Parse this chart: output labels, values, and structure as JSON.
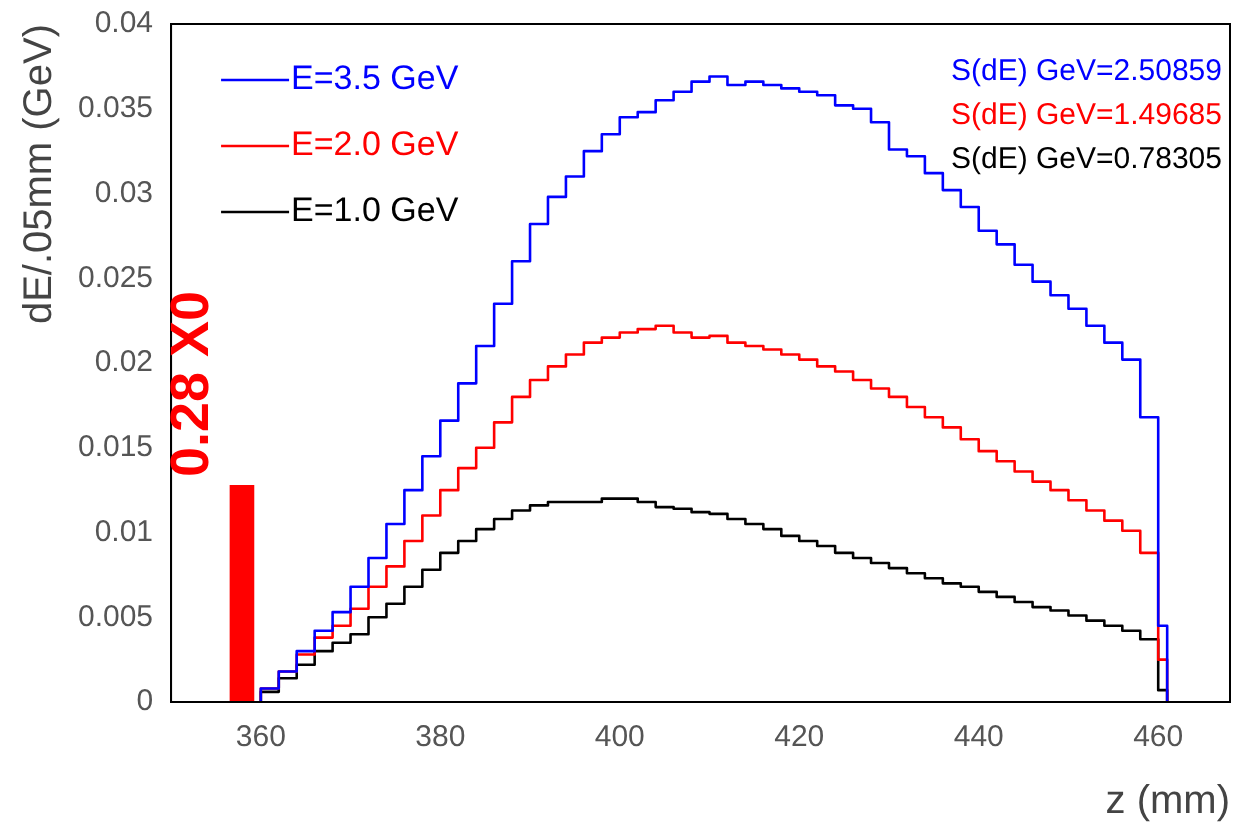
{
  "chart_data": {
    "type": "histogram",
    "xlabel": "z (mm)",
    "ylabel": "dE/.05mm (GeV)",
    "bins": [
      360,
      362,
      364,
      366,
      368,
      370,
      372,
      374,
      376,
      378,
      380,
      382,
      384,
      386,
      388,
      390,
      392,
      394,
      396,
      398,
      400,
      402,
      404,
      406,
      408,
      410,
      412,
      414,
      416,
      418,
      420,
      422,
      424,
      426,
      428,
      430,
      432,
      434,
      436,
      438,
      440,
      442,
      444,
      446,
      448,
      450,
      452,
      454,
      456,
      458,
      460,
      461
    ],
    "series": [
      {
        "name": "E=3.5 GeV",
        "color": "#0000ff",
        "values": [
          0.0008,
          0.0018,
          0.003,
          0.0042,
          0.0053,
          0.0068,
          0.0085,
          0.0105,
          0.0125,
          0.0145,
          0.0166,
          0.0188,
          0.021,
          0.0235,
          0.026,
          0.0282,
          0.0298,
          0.031,
          0.0325,
          0.0335,
          0.0345,
          0.0348,
          0.0355,
          0.036,
          0.0366,
          0.0369,
          0.0364,
          0.0366,
          0.0364,
          0.0362,
          0.036,
          0.0358,
          0.0352,
          0.035,
          0.0342,
          0.0326,
          0.0322,
          0.0312,
          0.0302,
          0.0292,
          0.0278,
          0.027,
          0.0258,
          0.0248,
          0.024,
          0.0232,
          0.0222,
          0.0212,
          0.0202,
          0.0168,
          0.0045
        ]
      },
      {
        "name": "E=2.0 GeV",
        "color": "#ff0000",
        "values": [
          0.0008,
          0.0018,
          0.0028,
          0.0038,
          0.0045,
          0.0055,
          0.0068,
          0.008,
          0.0095,
          0.011,
          0.0125,
          0.0138,
          0.015,
          0.0165,
          0.018,
          0.019,
          0.0198,
          0.0205,
          0.0212,
          0.0215,
          0.0218,
          0.022,
          0.0222,
          0.0218,
          0.0215,
          0.0216,
          0.0212,
          0.021,
          0.0208,
          0.0205,
          0.0202,
          0.0198,
          0.0195,
          0.019,
          0.0185,
          0.018,
          0.0174,
          0.0168,
          0.0162,
          0.0155,
          0.0148,
          0.0142,
          0.0136,
          0.013,
          0.0125,
          0.0119,
          0.0113,
          0.0107,
          0.0101,
          0.0088,
          0.0025
        ]
      },
      {
        "name": "E=1.0 GeV",
        "color": "#000000",
        "values": [
          0.0006,
          0.0014,
          0.0022,
          0.003,
          0.0035,
          0.004,
          0.005,
          0.0058,
          0.0068,
          0.0078,
          0.0088,
          0.0095,
          0.0102,
          0.0108,
          0.0113,
          0.0116,
          0.0118,
          0.0118,
          0.0118,
          0.012,
          0.012,
          0.0118,
          0.0115,
          0.0114,
          0.0112,
          0.0111,
          0.0108,
          0.0105,
          0.0102,
          0.0098,
          0.0095,
          0.0092,
          0.0088,
          0.0085,
          0.0082,
          0.0079,
          0.0076,
          0.0073,
          0.007,
          0.0068,
          0.0065,
          0.0062,
          0.0059,
          0.0056,
          0.0054,
          0.0051,
          0.0048,
          0.0045,
          0.0042,
          0.0037,
          0.0007
        ]
      },
      {
        "type": "area",
        "color": "#ff0000",
        "x": [
          356.5,
          359.3
        ],
        "values": [
          0.0128,
          0.0128
        ]
      }
    ],
    "annotations": [
      "S(dE) GeV=2.50859",
      "S(dE) GeV=1.49685",
      "S(dE) GeV=0.78305",
      "0.28 X0"
    ],
    "xlim": [
      350,
      468
    ],
    "xticks": [
      360,
      380,
      400,
      420,
      440,
      460
    ],
    "ylim": [
      0,
      0.04
    ],
    "yticks": [
      0,
      0.005,
      0.01,
      0.015,
      0.02,
      0.025,
      0.03,
      0.035,
      0.04
    ],
    "legend": "top left",
    "grid": false
  }
}
